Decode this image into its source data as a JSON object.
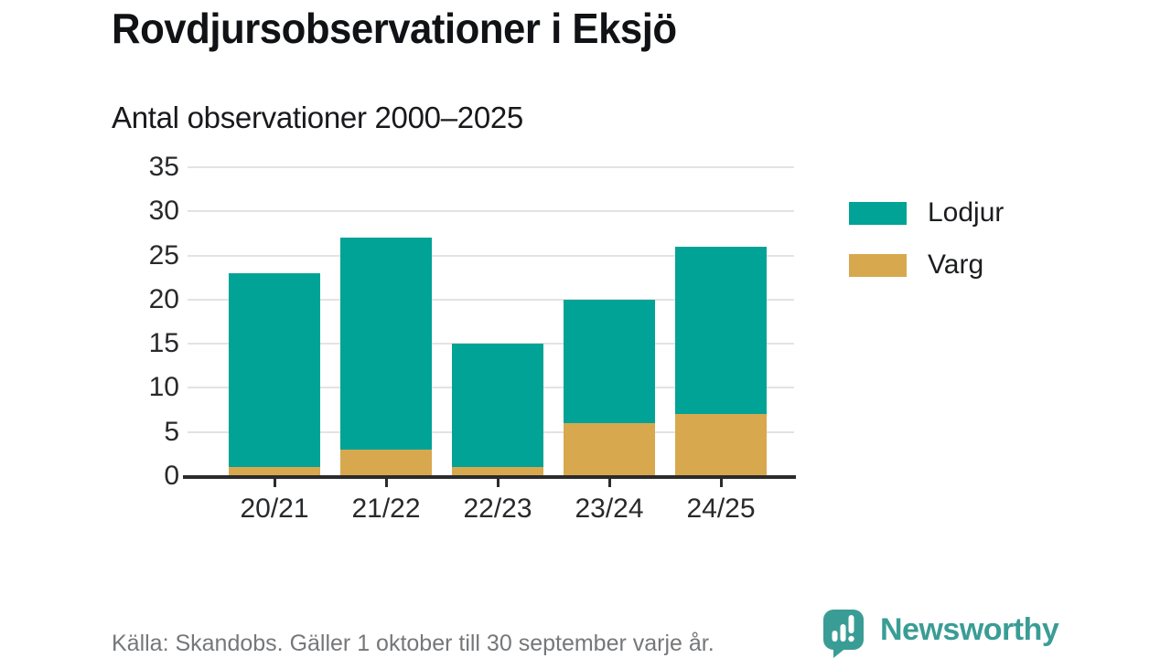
{
  "header": {
    "title": "Rovdjursobservationer i Eksjö",
    "subtitle": "Antal observationer 2000–2025"
  },
  "chart_data": {
    "type": "bar",
    "stacked": true,
    "title": "Rovdjursobservationer i Eksjö",
    "subtitle": "Antal observationer 2000–2025",
    "categories": [
      "20/21",
      "21/22",
      "22/23",
      "23/24",
      "24/25"
    ],
    "series": [
      {
        "name": "Lodjur",
        "color": "#00a396",
        "values": [
          22,
          24,
          14,
          14,
          19
        ]
      },
      {
        "name": "Varg",
        "color": "#d8a84e",
        "values": [
          1,
          3,
          1,
          6,
          7
        ]
      }
    ],
    "stack_bottom_to_top": [
      "Varg",
      "Lodjur"
    ],
    "totals": [
      23,
      27,
      15,
      20,
      26
    ],
    "xlabel": "",
    "ylabel": "Antal observationer",
    "ylim": [
      0,
      35
    ],
    "yticks": [
      0,
      5,
      10,
      15,
      20,
      25,
      30,
      35
    ],
    "grid": true,
    "legend_position": "right"
  },
  "legend": {
    "items": [
      {
        "label": "Lodjur",
        "color": "#00a396"
      },
      {
        "label": "Varg",
        "color": "#d8a84e"
      }
    ]
  },
  "footer": {
    "source": "Källa: Skandobs. Gäller 1 oktober till 30 september varje år.",
    "brand": "Newsworthy"
  },
  "colors": {
    "lodjur": "#00a396",
    "varg": "#d8a84e",
    "axis": "#2b2b2b",
    "grid": "#e3e3e3",
    "brand_teal": "#3a9d95"
  }
}
